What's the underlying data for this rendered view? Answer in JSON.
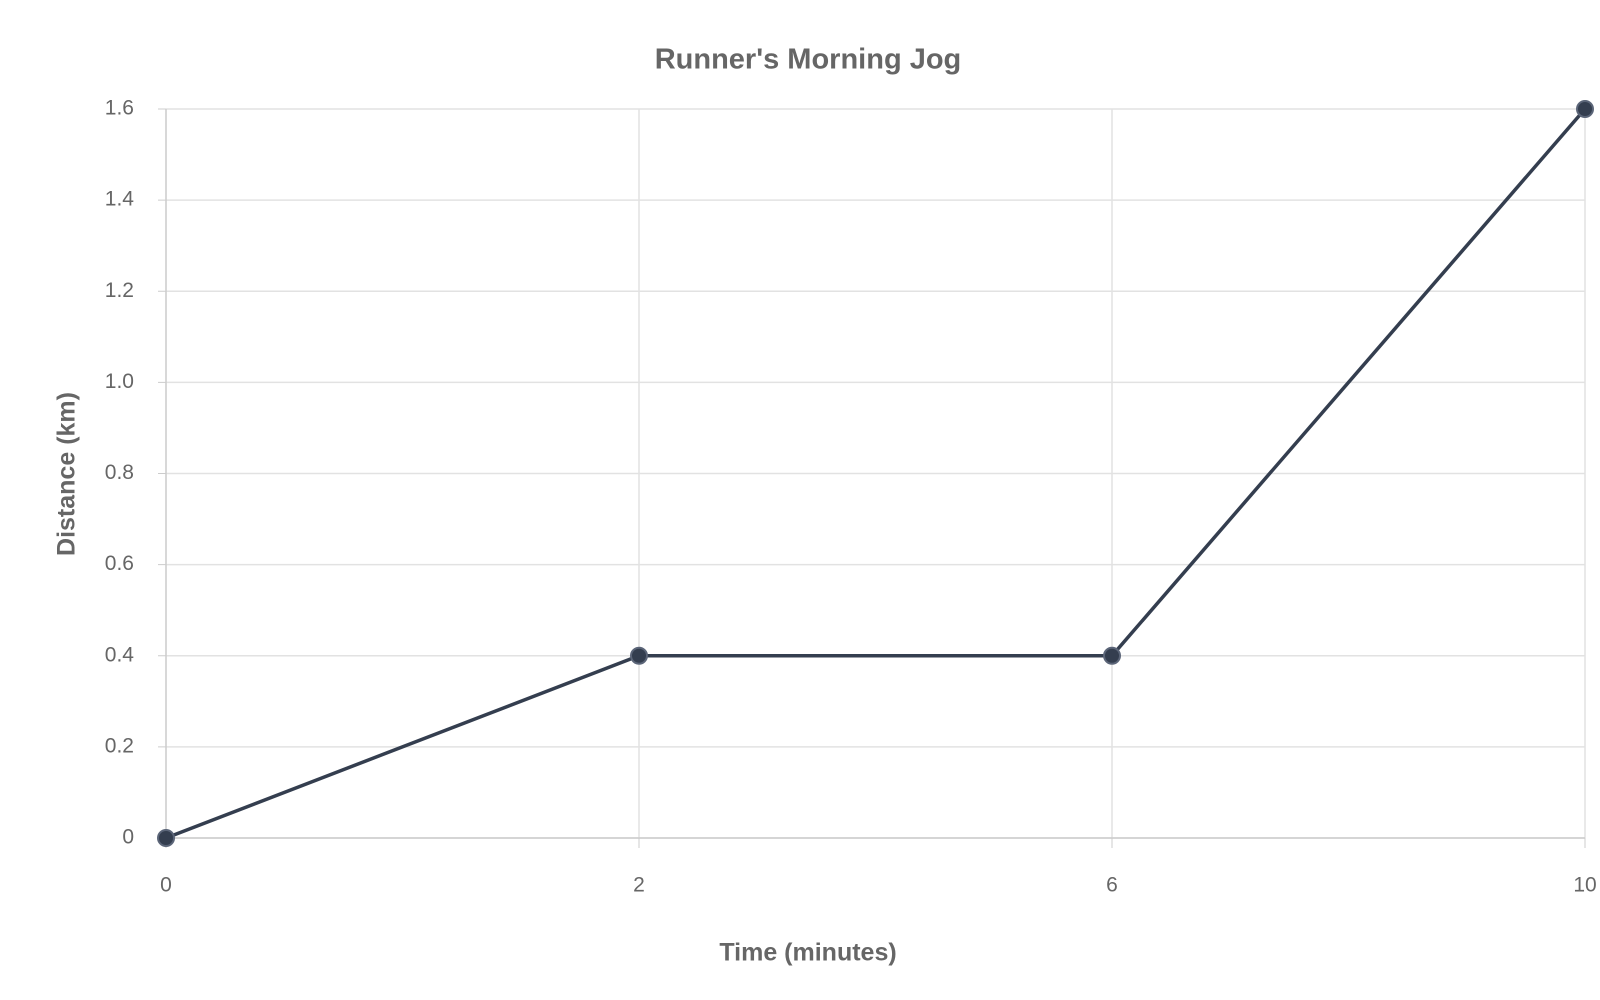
{
  "chart_data": {
    "type": "line",
    "title": "Runner's Morning Jog",
    "x_label": "Time (minutes)",
    "y_label": "Distance (km)",
    "categories": [
      "0",
      "2",
      "6",
      "10"
    ],
    "values": [
      0,
      0.4,
      0.4,
      1.6
    ],
    "color": "#343e4f",
    "ylim": [
      0,
      1.6
    ],
    "yticks": [
      0,
      0.2,
      0.4,
      0.6,
      0.8,
      {
        "value": 1,
        "label": "1.0"
      },
      1.2,
      1.4,
      1.6
    ],
    "grid": true
  }
}
